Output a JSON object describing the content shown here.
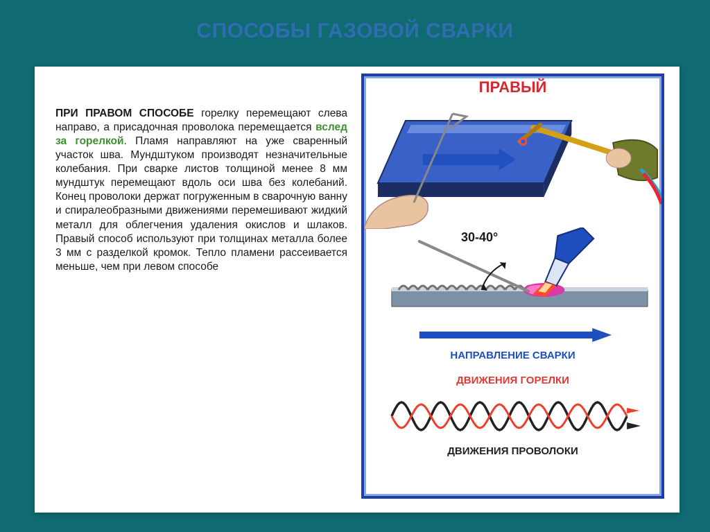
{
  "colors": {
    "page_bg": "#0f6a72",
    "title": "#2f6db0",
    "card_bg": "#ffffff",
    "text": "#1a1a1a",
    "highlight_green": "#3f8f32",
    "frame_border_outer": "#1f3fa8",
    "frame_border_inner": "#8aa5e6",
    "diagram_title": "#d7282f",
    "label_blue": "#1f4fbf",
    "label_red": "#e03a30",
    "label_black": "#222222",
    "plate_top": "#3a61c7",
    "plate_side": "#1b2d63",
    "plate_highlight": "#8aa9ee",
    "torch_body": "#d4a017",
    "torch_tip": "#b07a0e",
    "hand_glove": "#6f7a2c",
    "hand_skin": "#e8c4a0",
    "flame_outer": "#ff4a2e",
    "flame_inner": "#2a5be0",
    "weld_pool": "#d83aa8",
    "weld_bead": "#7a7067",
    "metal_bar": "#7d91a6",
    "arrow_blue": "#1f4fbf",
    "arrow_red": "#ef3e2a",
    "arrow_black": "#222222",
    "wire": "#888888"
  },
  "title": "СПОСОБЫ ГАЗОВОЙ СВАРКИ",
  "title_fontsize": 30,
  "body": {
    "fontsize": 15.5,
    "lead_span": "ПРИ ПРАВОМ СПОСОБЕ",
    "pre_highlight": " горелку перемещают слева направо, а присадочная проволока перемещается ",
    "highlight_span": "вслед за горелкой",
    "post_highlight": ". Пламя направляют на уже сваренный участок шва. Мундштуком производят незначительные колебания. При сварке листов толщиной менее 8 мм мундштук перемещают вдоль оси шва без колебаний. Конец проволоки держат погруженным в сварочную ванну и спиралеобразными движениями перемешивают жидкий металл для облегчения удаления окислов и шлаков. Правый способ используют при толщинах металла более 3 мм с разделкой кромок. Тепло пламени рассеивается меньше, чем при левом способе"
  },
  "diagram": {
    "title": "ПРАВЫЙ",
    "title_fontsize": 22,
    "angle_label": "30-40°",
    "direction_label": "НАПРАВЛЕНИЕ СВАРКИ",
    "torch_motion_label": "ДВИЖЕНИЯ ГОРЕЛКИ",
    "wire_motion_label": "ДВИЖЕНИЯ ПРОВОЛОКИ",
    "label_fontsize": 15,
    "wave": {
      "periods": 6,
      "amplitude": 20,
      "red_stroke_width": 3,
      "black_stroke_width": 3.5,
      "phase_offset": 0.5
    },
    "direction_arrow": {
      "length": 250,
      "thickness": 10
    },
    "plate_arrow": {
      "length": 110,
      "thickness": 16
    },
    "angle_arc_deg": {
      "start": 30,
      "end": 40
    }
  }
}
